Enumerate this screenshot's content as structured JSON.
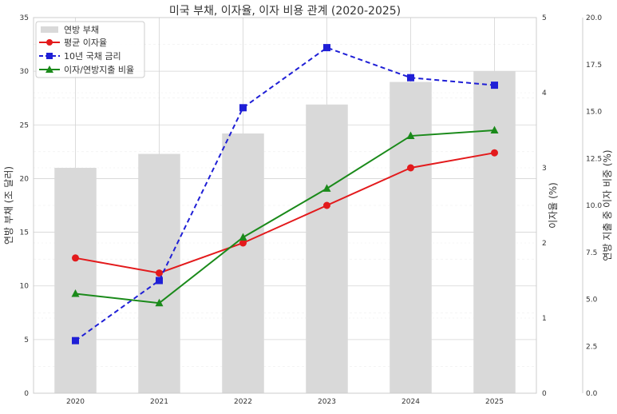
{
  "chart_data": {
    "type": "bar+line",
    "title": "미국 부채, 이자율, 이자 비용 관계 (2020-2025)",
    "categories": [
      "2020",
      "2021",
      "2022",
      "2023",
      "2024",
      "2025"
    ],
    "series": [
      {
        "name": "연방 부채",
        "kind": "bar",
        "axis": "left",
        "color": "#d9d9d9",
        "values": [
          21.0,
          22.3,
          24.2,
          26.9,
          29.0,
          30.0
        ]
      },
      {
        "name": "평균 이자율",
        "kind": "line",
        "axis": "right1",
        "color": "#e31a1c",
        "marker": "circle",
        "dash": "solid",
        "values": [
          1.8,
          1.6,
          2.0,
          2.5,
          3.0,
          3.2
        ]
      },
      {
        "name": "10년 국채 금리",
        "kind": "line",
        "axis": "right1",
        "color": "#1f1fd6",
        "marker": "square",
        "dash": "dashed",
        "values": [
          0.7,
          1.5,
          3.8,
          4.6,
          4.2,
          4.1
        ]
      },
      {
        "name": "이자/연방지출 비율",
        "kind": "line",
        "axis": "right2",
        "color": "#1a8a1a",
        "marker": "triangle",
        "dash": "solid",
        "values": [
          5.3,
          4.8,
          8.3,
          10.9,
          13.7,
          14.0
        ]
      }
    ],
    "axes": {
      "left": {
        "label": "연방 부채 (조 달러)",
        "ylim": [
          0,
          35
        ],
        "ticks": [
          "0",
          "5",
          "10",
          "15",
          "20",
          "25",
          "30",
          "35"
        ]
      },
      "right1": {
        "label": "이자율 (%)",
        "ylim": [
          0,
          5
        ],
        "ticks": [
          "0",
          "1",
          "2",
          "3",
          "4",
          "5"
        ]
      },
      "right2": {
        "label": "연방 지출 중 이자 비중 (%)",
        "ylim": [
          0,
          20
        ],
        "ticks": [
          "0.0",
          "2.5",
          "5.0",
          "7.5",
          "10.0",
          "12.5",
          "15.0",
          "17.5",
          "20.0"
        ]
      }
    },
    "grid": true,
    "legend_position": "top-left"
  }
}
